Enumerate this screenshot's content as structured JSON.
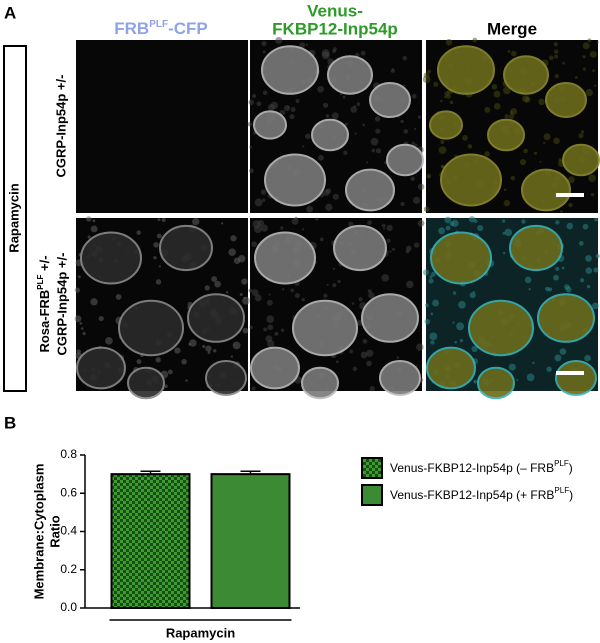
{
  "panel_a": {
    "label": "A",
    "col_1": [
      "FRB",
      "PLF",
      "-CFP"
    ],
    "col_2": [
      "Venus-",
      "FKBP12-Inp54p"
    ],
    "col_3": "Merge",
    "row_1": "CGRP-Inp54p +/-",
    "row_2_line_1": [
      "Rosa-FRB",
      "PLF",
      " +/-"
    ],
    "row_2_line_2": "CGRP-Inp54p +/-",
    "side_label": "Rapamycin"
  },
  "chart_data": {
    "type": "bar",
    "panel_label": "B",
    "ylabel": [
      "Membrane:Cytoplasm",
      "Ratio"
    ],
    "categories": [
      "Rapamycin"
    ],
    "series": [
      {
        "name": [
          "Venus-FKBP12-Inp54p (– FRB",
          "PLF",
          ")"
        ],
        "color": "#3f9a2f",
        "pattern": "checker",
        "values": [
          0.7
        ],
        "errors": [
          0.015
        ]
      },
      {
        "name": [
          "Venus-FKBP12-Inp54p (+ FRB",
          "PLF",
          ")"
        ],
        "color": "#3c8a34",
        "values": [
          0.7
        ],
        "errors": [
          0.015
        ]
      }
    ],
    "ylim": [
      0,
      0.8
    ],
    "yticks": [
      {
        "value": 0,
        "label": "0.0"
      },
      0.2,
      0.4,
      0.6,
      0.8
    ]
  }
}
